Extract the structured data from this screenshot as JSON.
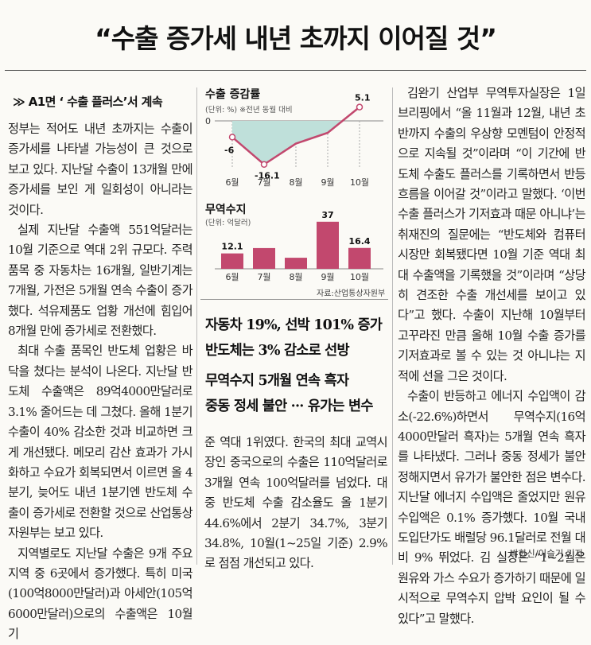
{
  "headline": "“수출 증가세 내년 초까지 이어질 것”",
  "subhead": "≫ A1면 ‘ 수출 플러스’서 계속",
  "col1": [
    "정부는 적어도 내년 초까지는 수출이 증가세를 나타낼 가능성이 큰 것으로 보고 있다. 지난달 수출이 13개월 만에 증가세를 보인 게 일회성이 아니라는 것이다.",
    "실제 지난달 수출액 551억달러는 10월 기준으로 역대 2위 규모다. 주력 품목 중 자동차는 16개월, 일반기계는 7개월, 가전은 5개월 연속 수출이 증가했다. 석유제품도 업황 개선에 힘입어 8개월 만에 증가세로 전환했다.",
    "최대 수출 품목인 반도체 업황은 바닥을 쳤다는 분석이 나온다. 지난달 반도체 수출액은 89억4000만달러로 3.1% 줄어드는 데 그쳤다. 올해 1분기 수출이 40% 감소한 것과 비교하면 크게 개선됐다. 메모리 감산 효과가 가시화하고 수요가 회복되면서 이르면 올 4분기, 늦어도 내년 1분기엔 반도체 수출이 증가세로 전환할 것으로 산업통상자원부는 보고 있다.",
    "지역별로도 지난달 수출은 9개 주요 지역 중 6곳에서 증가했다. 특히 미국(100억8000만달러)과 아세안(105억6000만달러)으로의 수출액은 10월 기"
  ],
  "col2_bottom": "준 역대 1위였다. 한국의 최대 교역시장인 중국으로의 수출은 110억달러로 3개월 연속 100억달러를 넘었다. 대중 반도체 수출 감소율도 올 1분기 44.6%에서 2분기 34.7%, 3분기 34.8%, 10월(1~25일 기준) 2.9%로 점점 개선되고 있다.",
  "col3": [
    "김완기 산업부 무역투자실장은 1일 브리핑에서 “올 11월과 12월, 내년 초반까지 수출의 우상향 모멘텀이 안정적으로 지속될 것”이라며 “이 기간에 반도체 수출도 플러스를 기록하면서 반등 흐름을 이어갈 것”이라고 말했다. ‘이번 수출 플러스가 기저효과 때문 아니냐’는 취재진의 질문에는 “반도체와 컴퓨터 시장만 회복됐다면 10월 기준 역대 최대 수출액을 기록했을 것”이라며 “상당히 견조한 수출 개선세를 보이고 있다”고 했다. 수출이 지난해 10월부터 고꾸라진 만큼 올해 10월 수출 증가를 기저효과로 볼 수 있는 것 아니냐는 지적에 선을 그은 것이다.",
    "수출이 반등하고 에너지 수입액이 감소(-22.6%)하면서 무역수지(16억4000만달러 흑자)는 5개월 연속 흑자를 나타냈다. 그러나 중동 정세가 불안정해지면서 유가가 불안한 점은 변수다. 지난달 에너지 수입액은 줄었지만 원유 수입액은 0.1% 증가했다. 10월 국내 도입단가도 배럴당 96.1달러로 전월 대비 9% 뛰었다. 김 실장은 “1~2월은 원유와 가스 수요가 증가하기 때문에 일시적으로 무역수지 압박 요인이 될 수 있다”고 말했다."
  ],
  "byline": "박한신/이슬기 기자",
  "midheads": [
    "자동차 19%, 선박 101% 증가",
    "반도체는 3% 감소로 선방",
    "무역수지 5개월 연속 흑자",
    "중동 정세 불안 ··· 유가는 변수"
  ],
  "chart_data": [
    {
      "type": "area",
      "title": "수출 증감률",
      "unit": "(단위: %)",
      "note": "※전년 동월 대비",
      "categories": [
        "6월",
        "7월",
        "8월",
        "9월",
        "10월"
      ],
      "values": [
        -6,
        -16.1,
        -8.4,
        -4.4,
        5.1
      ],
      "labels": [
        "-6",
        "-16.1",
        "",
        "",
        "5.1"
      ],
      "zero_label": "0",
      "line_color": "#c2486e",
      "fill_color": "#bfe0da"
    },
    {
      "type": "bar",
      "title": "무역수지",
      "unit": "(단위: 억달러)",
      "categories": [
        "6월",
        "7월",
        "8월",
        "9월",
        "10월"
      ],
      "values": [
        12.1,
        16.3,
        8.7,
        37,
        16.4
      ],
      "labels": [
        "12.1",
        "",
        "",
        "37",
        "16.4"
      ],
      "bar_color": "#c2486e",
      "source": "자료:산업통상자원부"
    }
  ]
}
